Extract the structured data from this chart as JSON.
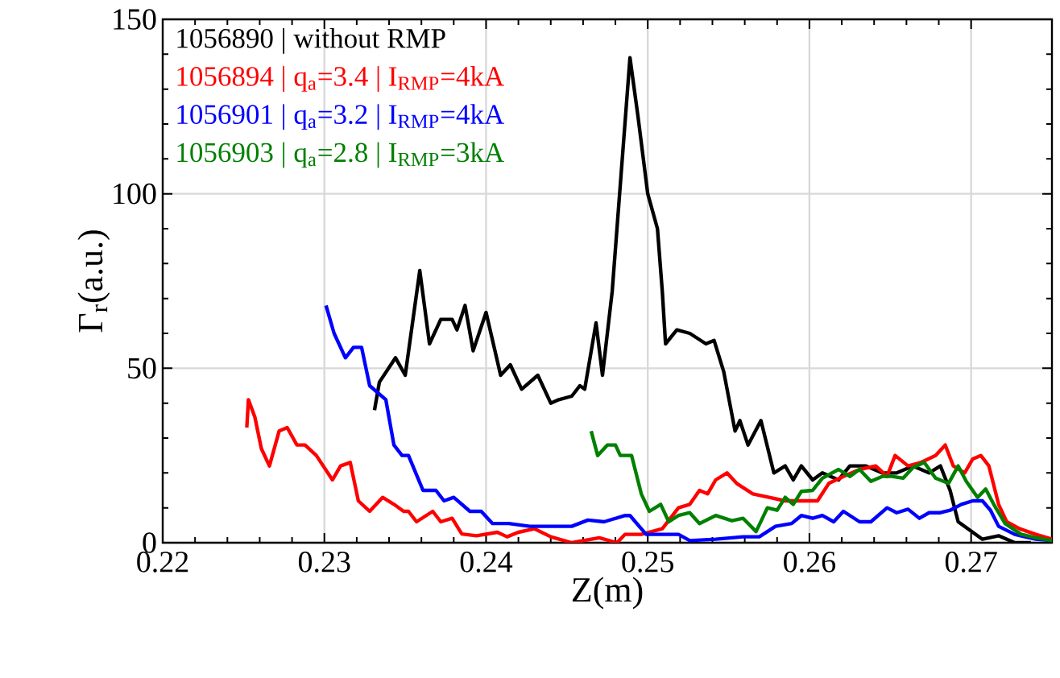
{
  "chart_data": {
    "type": "line",
    "xlabel": "Z(m)",
    "ylabel": "Γ$_{r}$(a.u.)",
    "xlim": [
      0.22,
      0.275
    ],
    "xticks": [
      0.22,
      0.23,
      0.24,
      0.25,
      0.26,
      0.27
    ],
    "ylim": [
      0,
      150
    ],
    "yticks": [
      0,
      50,
      100,
      150
    ],
    "grid": true,
    "legend": "top left",
    "marker": "none",
    "line_style": "solid",
    "series": [
      {
        "name": "1056890 | without RMP",
        "color": "#000000",
        "x": [
          0.2331,
          0.2334,
          0.2344,
          0.235,
          0.2359,
          0.2365,
          0.2372,
          0.2379,
          0.2382,
          0.2387,
          0.2392,
          0.24,
          0.2409,
          0.2415,
          0.2422,
          0.2432,
          0.244,
          0.2445,
          0.2453,
          0.2458,
          0.2461,
          0.2468,
          0.2472,
          0.2478,
          0.2489,
          0.2494,
          0.25,
          0.2506,
          0.2509,
          0.2511,
          0.2518,
          0.2526,
          0.2536,
          0.2541,
          0.2547,
          0.2554,
          0.2557,
          0.2562,
          0.257,
          0.2578,
          0.2585,
          0.259,
          0.2595,
          0.2602,
          0.2608,
          0.2618,
          0.2625,
          0.2635,
          0.2645,
          0.2654,
          0.2664,
          0.2674,
          0.2681,
          0.2687,
          0.2692,
          0.2701,
          0.2707,
          0.2717,
          0.2727,
          0.2737
        ],
        "values": [
          38,
          46,
          53,
          48,
          78,
          57,
          64,
          64,
          61,
          68,
          55,
          66,
          48,
          51,
          44,
          48,
          40,
          41,
          42,
          45,
          44,
          63,
          48,
          72,
          139,
          122,
          100,
          90,
          72,
          57,
          61,
          60,
          57,
          58,
          49,
          32,
          35,
          28,
          35,
          20,
          22,
          18,
          22,
          18,
          20,
          18,
          22,
          22,
          20,
          20,
          22,
          20,
          22,
          15,
          6,
          3,
          1,
          2,
          0,
          0
        ]
      },
      {
        "name": "1056894 | q$_{a}$=3.4 | I$_{RMP}$=4kA",
        "color": "#ff0000",
        "x": [
          0.2252,
          0.2253,
          0.2257,
          0.2261,
          0.2266,
          0.2272,
          0.2277,
          0.2283,
          0.2288,
          0.2295,
          0.2305,
          0.231,
          0.2316,
          0.2321,
          0.2328,
          0.2336,
          0.2343,
          0.2349,
          0.2352,
          0.2357,
          0.2367,
          0.2372,
          0.2379,
          0.2385,
          0.2394,
          0.2407,
          0.2413,
          0.242,
          0.243,
          0.244,
          0.2453,
          0.247,
          0.2481,
          0.2486,
          0.2496,
          0.2509,
          0.2519,
          0.2526,
          0.2532,
          0.2537,
          0.2542,
          0.2549,
          0.2555,
          0.2565,
          0.2575,
          0.2585,
          0.2595,
          0.2605,
          0.2612,
          0.2621,
          0.2631,
          0.2641,
          0.2648,
          0.2653,
          0.2661,
          0.2669,
          0.2678,
          0.2684,
          0.2689,
          0.2696,
          0.2701,
          0.2706,
          0.2711,
          0.2717,
          0.2722,
          0.273,
          0.274,
          0.275
        ],
        "values": [
          33,
          41,
          36,
          27,
          22,
          32,
          33,
          28,
          28,
          25,
          18,
          22,
          23,
          12,
          9,
          13,
          11,
          9,
          9,
          6,
          9,
          6,
          7,
          2.5,
          2,
          3,
          1.7,
          3,
          4,
          1.7,
          0,
          1.4,
          0,
          2.4,
          2.4,
          4,
          10,
          11,
          15,
          14,
          18,
          20,
          17,
          14,
          13,
          12,
          12,
          12,
          17,
          19,
          21,
          22,
          19,
          25,
          22,
          23,
          25,
          28,
          22,
          20,
          24,
          25,
          22,
          11,
          6,
          4,
          2.4,
          1
        ]
      },
      {
        "name": "1056901 | q$_{a}$=3.2 | I$_{RMP}$=4kA",
        "color": "#0000ff",
        "x": [
          0.2301,
          0.2306,
          0.2313,
          0.2318,
          0.2323,
          0.2328,
          0.2338,
          0.2343,
          0.2348,
          0.2352,
          0.2361,
          0.2369,
          0.2374,
          0.238,
          0.239,
          0.2397,
          0.2404,
          0.2414,
          0.2427,
          0.244,
          0.2453,
          0.2463,
          0.2473,
          0.2486,
          0.2489,
          0.2499,
          0.2509,
          0.2519,
          0.2526,
          0.2542,
          0.2559,
          0.2569,
          0.2579,
          0.2589,
          0.2595,
          0.2602,
          0.2608,
          0.2615,
          0.2621,
          0.2631,
          0.2638,
          0.2648,
          0.2654,
          0.2661,
          0.2668,
          0.2674,
          0.2681,
          0.2687,
          0.2694,
          0.2701,
          0.2707,
          0.2712,
          0.2717,
          0.2727,
          0.274,
          0.275
        ],
        "values": [
          68,
          60,
          53,
          56,
          56,
          45,
          41,
          28,
          25,
          25,
          15,
          15,
          12,
          13,
          9,
          9,
          5.5,
          5.5,
          4.7,
          4.7,
          4.7,
          6.5,
          6,
          7.8,
          7.8,
          2.4,
          2.4,
          2.4,
          0.6,
          1,
          1.7,
          1.7,
          4.7,
          5.5,
          7.8,
          7,
          7.8,
          6,
          9,
          6,
          6,
          10,
          8.6,
          9.6,
          7,
          8.6,
          8.6,
          9.3,
          11,
          12,
          12,
          9.3,
          4.7,
          2.4,
          1,
          0.6
        ]
      },
      {
        "name": "1056903 | q$_{a}$=2.8 | I$_{RMP}$=3kA",
        "color": "#008000",
        "x": [
          0.2465,
          0.2469,
          0.2475,
          0.248,
          0.2483,
          0.249,
          0.2496,
          0.2501,
          0.2508,
          0.2513,
          0.2519,
          0.2526,
          0.2532,
          0.2542,
          0.2552,
          0.2559,
          0.2567,
          0.2574,
          0.258,
          0.2585,
          0.259,
          0.2595,
          0.2602,
          0.2608,
          0.2618,
          0.2625,
          0.2631,
          0.2638,
          0.2645,
          0.2651,
          0.2658,
          0.2664,
          0.2671,
          0.2678,
          0.2686,
          0.2692,
          0.2697,
          0.2704,
          0.2709,
          0.2714,
          0.2721,
          0.2731,
          0.274,
          0.275
        ],
        "values": [
          32,
          25,
          28,
          28,
          25,
          25,
          14,
          9,
          11,
          6,
          7.8,
          8.6,
          5.5,
          7.8,
          6.3,
          7,
          3.2,
          10,
          9.3,
          13,
          11,
          14.7,
          15,
          18.5,
          21,
          19,
          21,
          17.6,
          19,
          19,
          18.5,
          21.5,
          23,
          18.5,
          17,
          22,
          17.6,
          13,
          15.4,
          11,
          5.5,
          2.4,
          1.4,
          0.6
        ]
      }
    ]
  }
}
